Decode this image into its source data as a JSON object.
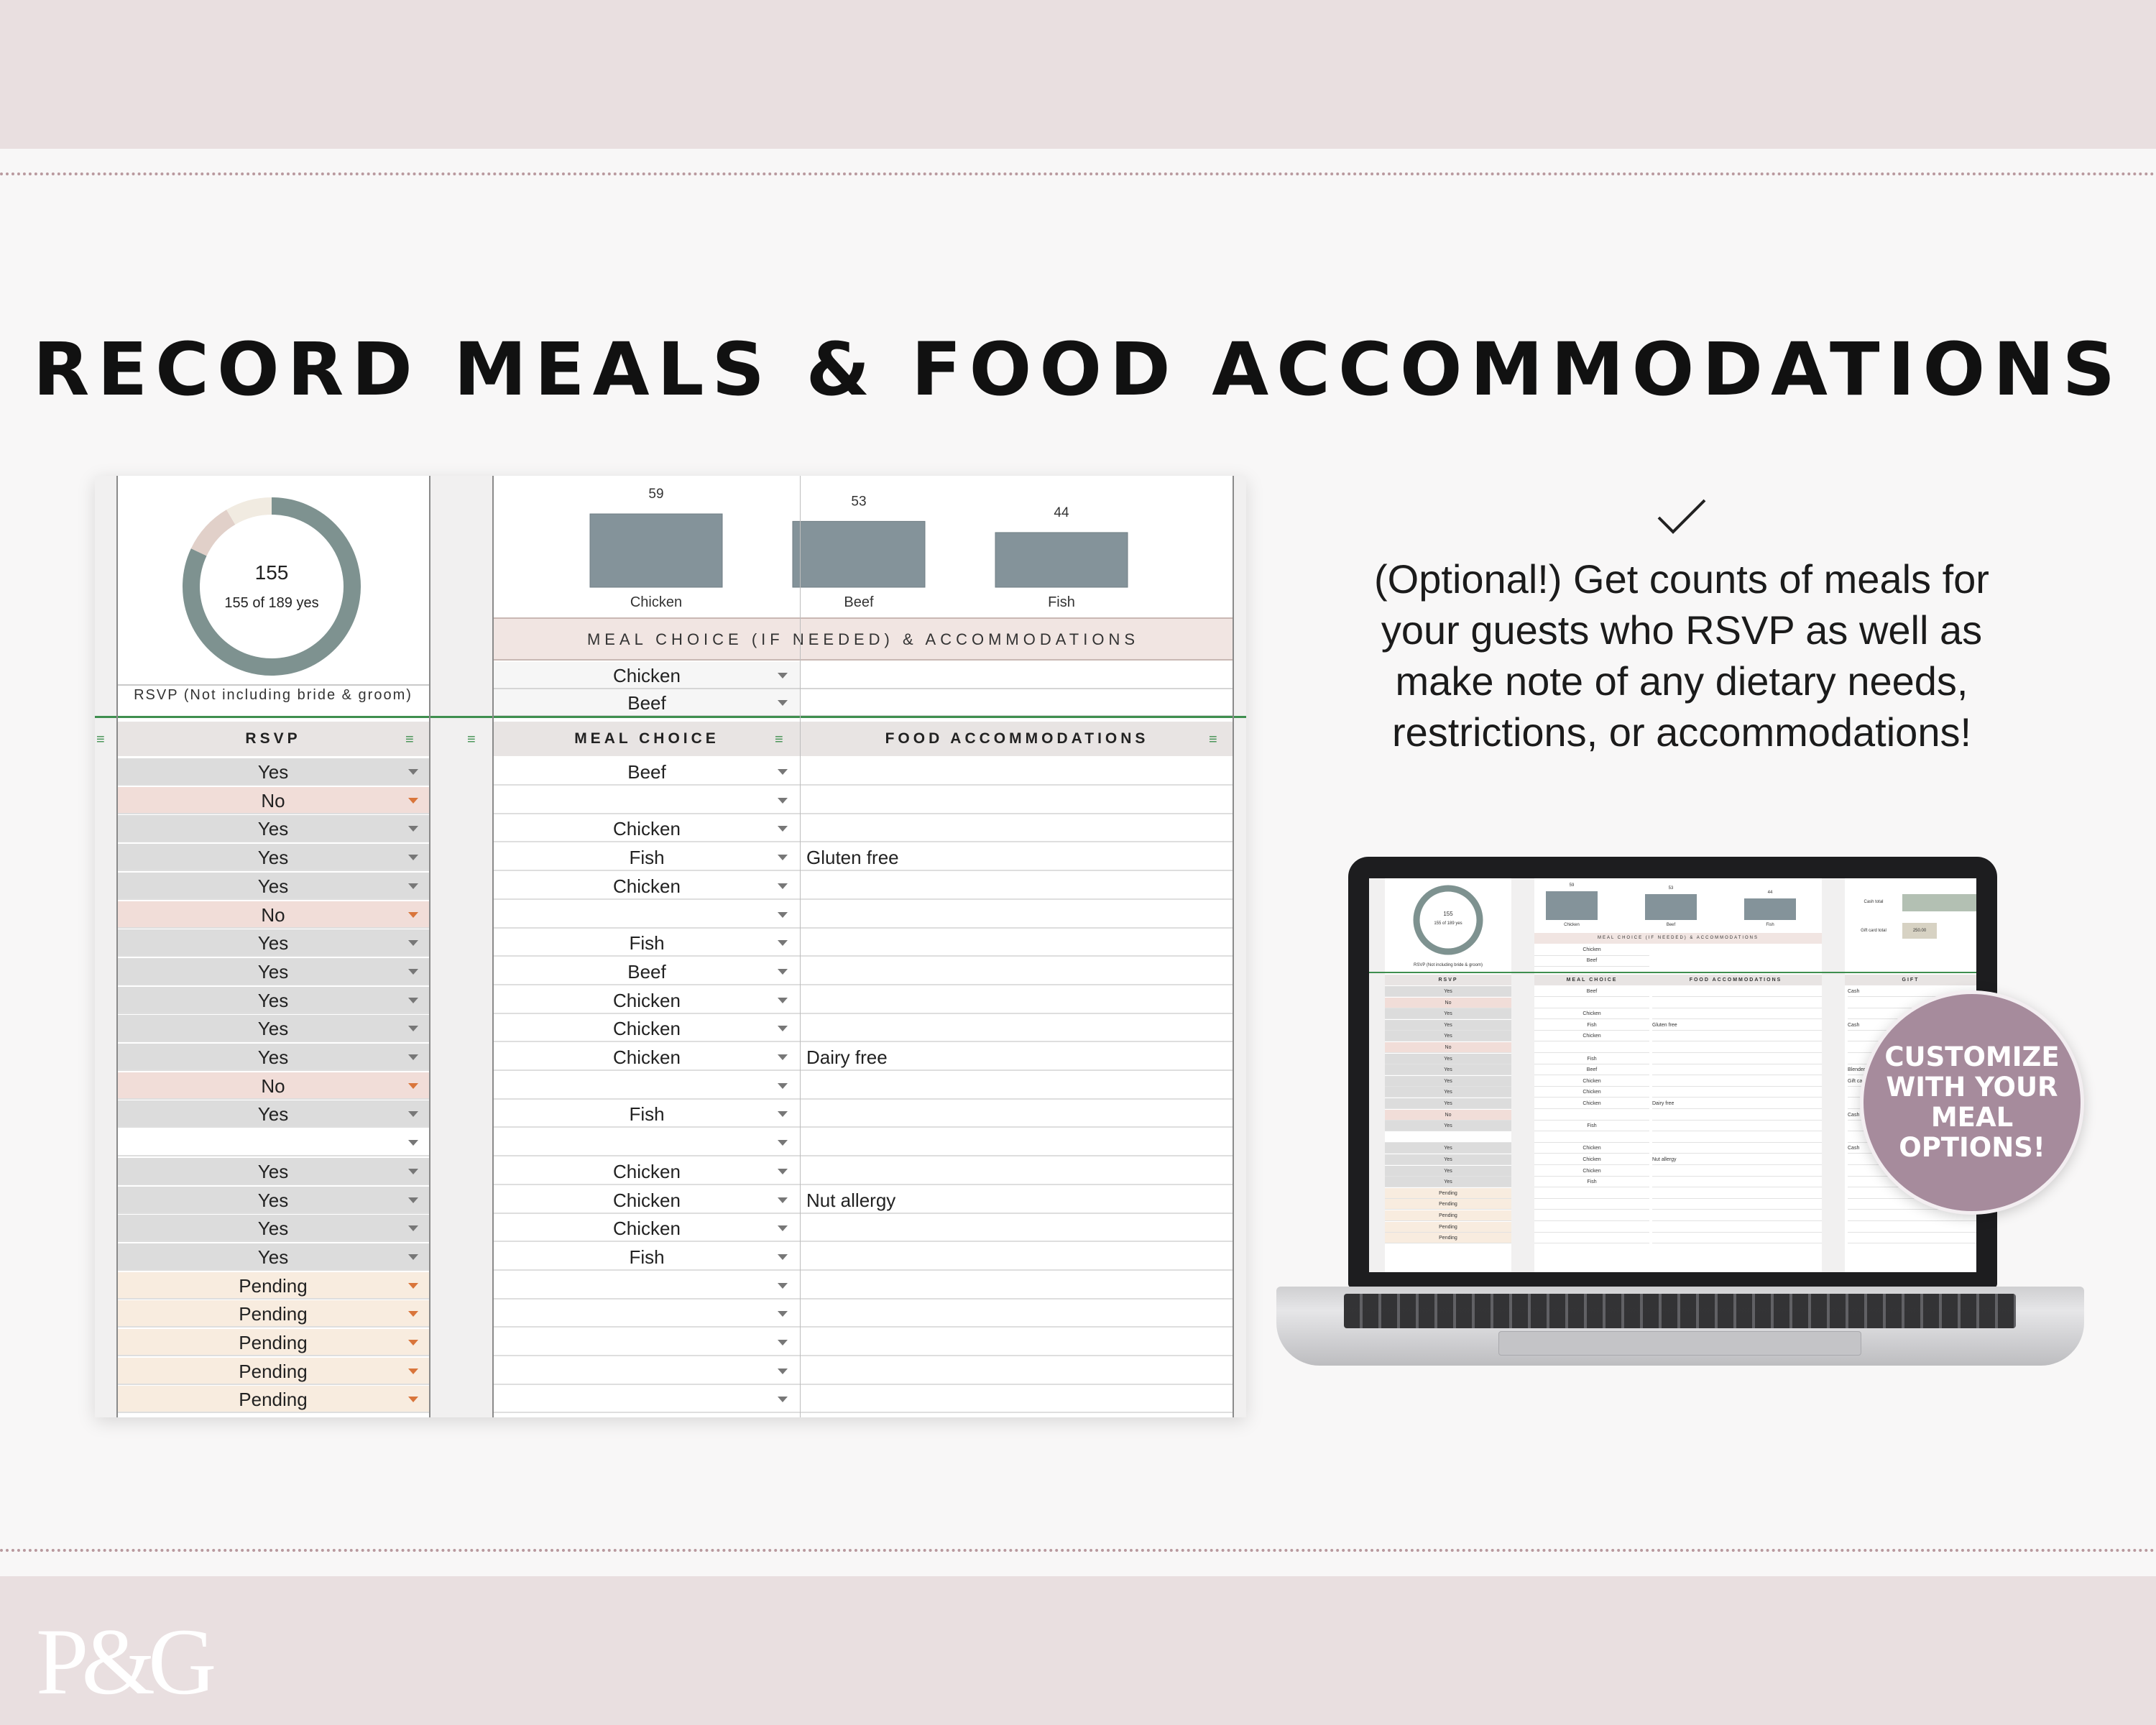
{
  "headline": "RECORD MEALS & FOOD ACCOMMODATIONS",
  "logo": "P&G",
  "colors": {
    "band": "#e9dfe0",
    "yes": "#dcdcdc",
    "no": "#f1ddd8",
    "pending": "#f8ecdf",
    "bar": "#84939a",
    "donut": "#7e9290",
    "badge": "#a68b9c"
  },
  "rsvp_summary": {
    "count": "155",
    "subtitle": "155 of 189 yes",
    "label": "RSVP  (Not including bride & groom)",
    "yes": 155,
    "no": 18,
    "pending": 16
  },
  "chart_data": {
    "type": "bar",
    "categories": [
      "Chicken",
      "Beef",
      "Fish"
    ],
    "values": [
      59,
      53,
      44
    ]
  },
  "section_title": "MEAL CHOICE (IF NEEDED) & ACCOMMODATIONS",
  "meal_options": [
    "Chicken",
    "Beef"
  ],
  "headers": {
    "rsvp": "RSVP",
    "meal": "MEAL CHOICE",
    "food": "FOOD ACCOMMODATIONS"
  },
  "rows": [
    {
      "rsvp": "Yes",
      "meal": "Beef",
      "food": ""
    },
    {
      "rsvp": "No",
      "meal": "",
      "food": ""
    },
    {
      "rsvp": "Yes",
      "meal": "Chicken",
      "food": ""
    },
    {
      "rsvp": "Yes",
      "meal": "Fish",
      "food": "Gluten free"
    },
    {
      "rsvp": "Yes",
      "meal": "Chicken",
      "food": ""
    },
    {
      "rsvp": "No",
      "meal": "",
      "food": ""
    },
    {
      "rsvp": "Yes",
      "meal": "Fish",
      "food": ""
    },
    {
      "rsvp": "Yes",
      "meal": "Beef",
      "food": ""
    },
    {
      "rsvp": "Yes",
      "meal": "Chicken",
      "food": ""
    },
    {
      "rsvp": "Yes",
      "meal": "Chicken",
      "food": ""
    },
    {
      "rsvp": "Yes",
      "meal": "Chicken",
      "food": "Dairy free"
    },
    {
      "rsvp": "No",
      "meal": "",
      "food": ""
    },
    {
      "rsvp": "Yes",
      "meal": "Fish",
      "food": ""
    },
    {
      "rsvp": "",
      "meal": "",
      "food": ""
    },
    {
      "rsvp": "Yes",
      "meal": "Chicken",
      "food": ""
    },
    {
      "rsvp": "Yes",
      "meal": "Chicken",
      "food": "Nut allergy"
    },
    {
      "rsvp": "Yes",
      "meal": "Chicken",
      "food": ""
    },
    {
      "rsvp": "Yes",
      "meal": "Fish",
      "food": ""
    },
    {
      "rsvp": "Pending",
      "meal": "",
      "food": ""
    },
    {
      "rsvp": "Pending",
      "meal": "",
      "food": ""
    },
    {
      "rsvp": "Pending",
      "meal": "",
      "food": ""
    },
    {
      "rsvp": "Pending",
      "meal": "",
      "food": ""
    },
    {
      "rsvp": "Pending",
      "meal": "",
      "food": ""
    }
  ],
  "description": "(Optional!) Get counts of meals for your guests who RSVP as well as make note of any dietary needs, restrictions, or accommodations!",
  "check_icon": "checkmark-icon",
  "badge": "CUSTOMIZE WITH YOUR MEAL OPTIONS!",
  "laptop": {
    "gift_header": "GIFT",
    "cash_total_label": "Cash total",
    "gift_card_total_label": "Gift card total",
    "gift_card_total": "250.00",
    "gifts": [
      "Cash",
      "",
      "",
      "Cash",
      "",
      "",
      "",
      "Blender",
      "Gift ca",
      "",
      "",
      "Cash",
      "",
      "",
      "Cash"
    ]
  }
}
